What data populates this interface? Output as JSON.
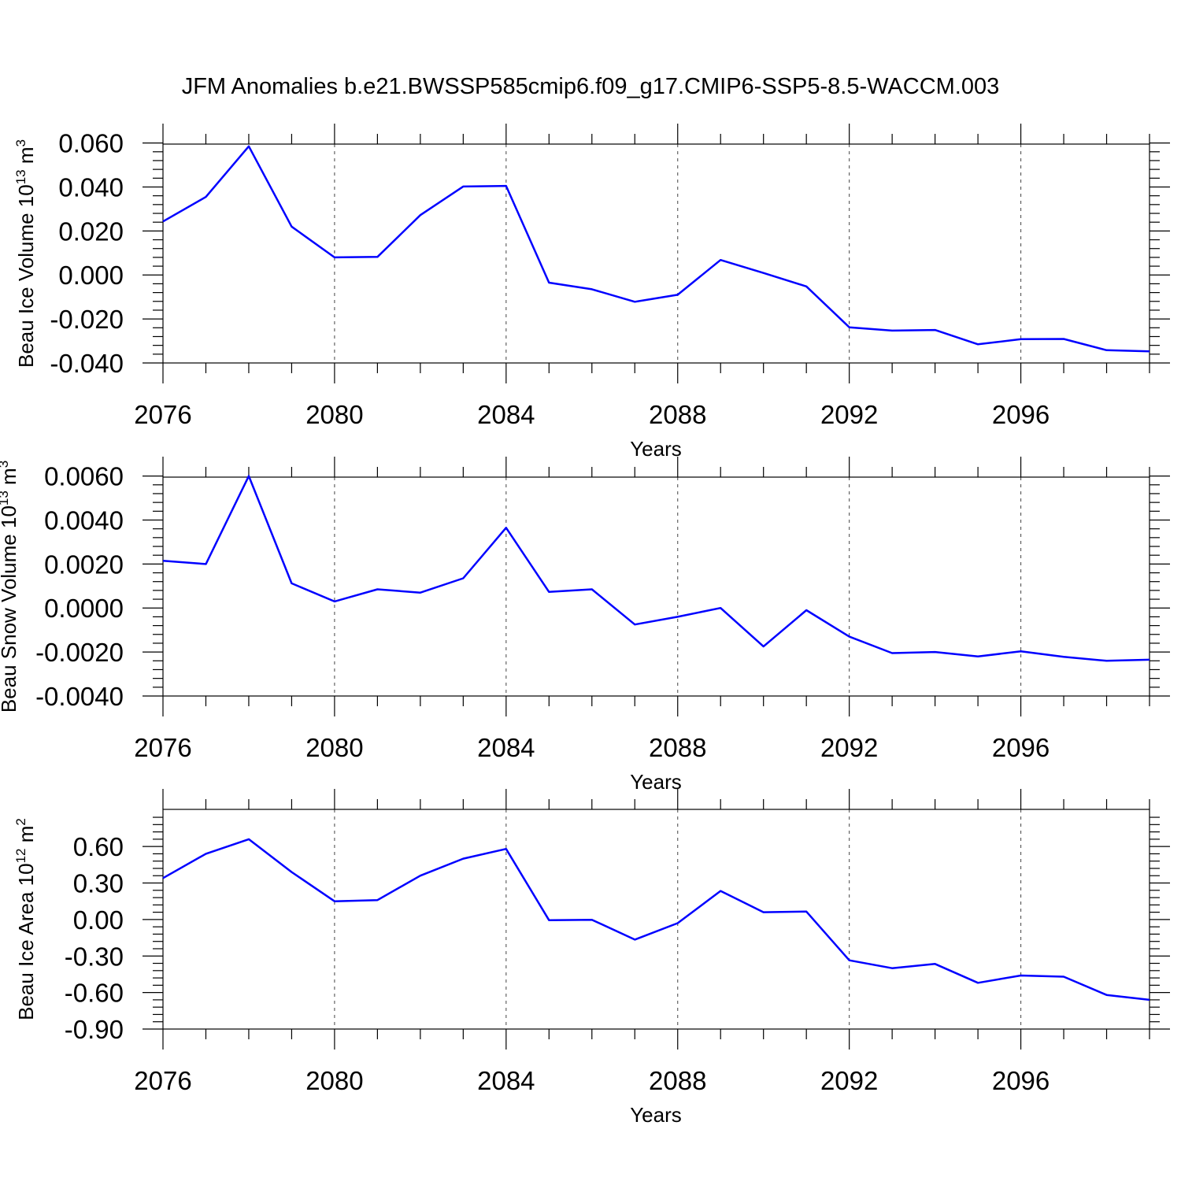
{
  "title": "JFM Anomalies b.e21.BWSSP585cmip6.f09_g17.CMIP6-SSP5-8.5-WACCM.003",
  "line_color": "#0000ff",
  "chart_data": [
    {
      "type": "line",
      "ylabel_main": "Beau Ice Volume 10",
      "ylabel_exp": "13",
      "ylabel_unit": "m",
      "ylabel_unit_exp": "3",
      "xlabel": "Years",
      "xlim": [
        2076,
        2099
      ],
      "ylim": [
        -0.04,
        0.0595
      ],
      "x_ticks": [
        2076,
        2080,
        2084,
        2088,
        2092,
        2096
      ],
      "y_ticks": [
        -0.04,
        -0.02,
        0.0,
        0.02,
        0.04,
        0.06
      ],
      "y_tick_labels": [
        "-0.040",
        "-0.020",
        "0.000",
        "0.020",
        "0.040",
        "0.060"
      ],
      "grid": "dashed vertical at x ticks",
      "x": [
        2076,
        2077,
        2078,
        2079,
        2080,
        2081,
        2082,
        2083,
        2084,
        2085,
        2086,
        2087,
        2088,
        2089,
        2090,
        2091,
        2092,
        2093,
        2094,
        2095,
        2096,
        2097,
        2098,
        2099
      ],
      "values": [
        0.0243,
        0.0355,
        0.0585,
        0.022,
        0.008,
        0.0082,
        0.0272,
        0.0402,
        0.0405,
        -0.0035,
        -0.0065,
        -0.0122,
        -0.009,
        0.0068,
        0.0009,
        -0.0052,
        -0.0238,
        -0.0253,
        -0.025,
        -0.0315,
        -0.0292,
        -0.0291,
        -0.0342,
        -0.0347
      ]
    },
    {
      "type": "line",
      "ylabel_main": "Beau Snow Volume 10",
      "ylabel_exp": "13",
      "ylabel_unit": "m",
      "ylabel_unit_exp": "3",
      "xlabel": "Years",
      "xlim": [
        2076,
        2099
      ],
      "ylim": [
        -0.004,
        0.00595
      ],
      "x_ticks": [
        2076,
        2080,
        2084,
        2088,
        2092,
        2096
      ],
      "y_ticks": [
        -0.004,
        -0.002,
        0.0,
        0.002,
        0.004,
        0.006
      ],
      "y_tick_labels": [
        "-0.0040",
        "-0.0020",
        "0.0000",
        "0.0020",
        "0.0040",
        "0.0060"
      ],
      "grid": "dashed vertical at x ticks",
      "x": [
        2076,
        2077,
        2078,
        2079,
        2080,
        2081,
        2082,
        2083,
        2084,
        2085,
        2086,
        2087,
        2088,
        2089,
        2090,
        2091,
        2092,
        2093,
        2094,
        2095,
        2096,
        2097,
        2098,
        2099
      ],
      "values": [
        0.00215,
        0.002,
        0.006,
        0.00112,
        0.0003,
        0.00085,
        0.0007,
        0.00135,
        0.00365,
        0.00073,
        0.00085,
        -0.00075,
        -0.0004,
        0.0,
        -0.00175,
        -0.0001,
        -0.0013,
        -0.00205,
        -0.002,
        -0.0022,
        -0.00197,
        -0.00222,
        -0.0024,
        -0.00235
      ]
    },
    {
      "type": "line",
      "ylabel_main": "Beau Ice Area 10",
      "ylabel_exp": "12",
      "ylabel_unit": "m",
      "ylabel_unit_exp": "2",
      "xlabel": "Years",
      "xlim": [
        2076,
        2099
      ],
      "ylim": [
        -0.9,
        0.905
      ],
      "x_ticks": [
        2076,
        2080,
        2084,
        2088,
        2092,
        2096
      ],
      "y_ticks": [
        -0.9,
        -0.6,
        -0.3,
        0.0,
        0.3,
        0.6
      ],
      "y_tick_labels": [
        "-0.90",
        "-0.60",
        "-0.30",
        "0.00",
        "0.30",
        "0.60"
      ],
      "grid": "dashed vertical at x ticks",
      "x": [
        2076,
        2077,
        2078,
        2079,
        2080,
        2081,
        2082,
        2083,
        2084,
        2085,
        2086,
        2087,
        2088,
        2089,
        2090,
        2091,
        2092,
        2093,
        2094,
        2095,
        2096,
        2097,
        2098,
        2099
      ],
      "values": [
        0.34,
        0.54,
        0.66,
        0.39,
        0.15,
        0.16,
        0.36,
        0.5,
        0.58,
        -0.005,
        -0.002,
        -0.165,
        -0.03,
        0.235,
        0.06,
        0.065,
        -0.335,
        -0.4,
        -0.365,
        -0.52,
        -0.46,
        -0.47,
        -0.62,
        -0.66
      ]
    }
  ]
}
